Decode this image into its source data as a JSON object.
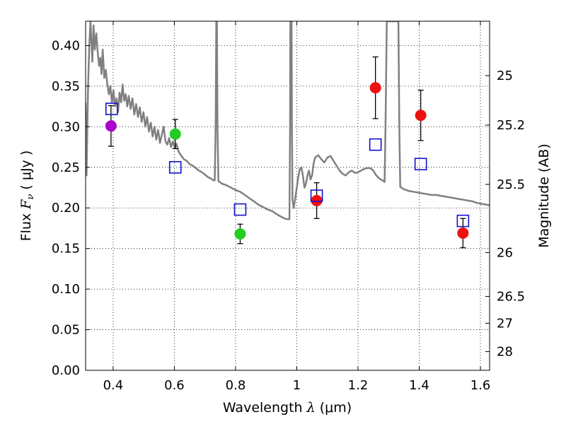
{
  "chart_data": {
    "type": "scatter",
    "xlabel_prefix": "Wavelength  ",
    "xlabel_symbol": "λ",
    "xlabel_suffix": " (μm)",
    "ylabel_prefix": "Flux  ",
    "ylabel_symbol": "F",
    "ylabel_subscript": "ν",
    "ylabel_suffix": "  ( μJy )",
    "y2label": "Magnitude (AB)",
    "xlim": [
      0.31,
      1.63
    ],
    "ylim": [
      0.0,
      0.43
    ],
    "grid": true,
    "x_ticks": [
      0.4,
      0.6,
      0.8,
      1.0,
      1.2,
      1.4,
      1.6
    ],
    "x_tick_labels": [
      "0.4",
      "0.6",
      "0.8",
      "1",
      "1.2",
      "1.4",
      "1.6"
    ],
    "y_ticks": [
      0.0,
      0.05,
      0.1,
      0.15,
      0.2,
      0.25,
      0.3,
      0.35,
      0.4
    ],
    "y_tick_labels": [
      "0.00",
      "0.05",
      "0.10",
      "0.15",
      "0.20",
      "0.25",
      "0.30",
      "0.35",
      "0.40"
    ],
    "y2_ticks": [
      {
        "label": "25",
        "flux": 0.363
      },
      {
        "label": "25.2",
        "flux": 0.302
      },
      {
        "label": "25.5",
        "flux": 0.229
      },
      {
        "label": "26",
        "flux": 0.145
      },
      {
        "label": "26.5",
        "flux": 0.091
      },
      {
        "label": "27",
        "flux": 0.058
      },
      {
        "label": "28",
        "flux": 0.023
      }
    ],
    "observed_points": [
      {
        "x": 0.393,
        "y": 0.301,
        "err": 0.025,
        "color": "#aa00cc"
      },
      {
        "x": 0.603,
        "y": 0.291,
        "err": 0.018,
        "color": "#22cc22"
      },
      {
        "x": 0.815,
        "y": 0.168,
        "err": 0.012,
        "color": "#22cc22"
      },
      {
        "x": 1.065,
        "y": 0.209,
        "err": 0.022,
        "color": "#ee1111"
      },
      {
        "x": 1.257,
        "y": 0.348,
        "err": 0.038,
        "color": "#ee1111"
      },
      {
        "x": 1.405,
        "y": 0.314,
        "err": 0.031,
        "color": "#ee1111"
      },
      {
        "x": 1.543,
        "y": 0.169,
        "err": 0.018,
        "color": "#ee1111"
      }
    ],
    "model_points": [
      {
        "x": 0.395,
        "y": 0.322
      },
      {
        "x": 0.603,
        "y": 0.25
      },
      {
        "x": 0.815,
        "y": 0.198
      },
      {
        "x": 1.065,
        "y": 0.215
      },
      {
        "x": 1.257,
        "y": 0.278
      },
      {
        "x": 1.405,
        "y": 0.254
      },
      {
        "x": 1.543,
        "y": 0.184
      }
    ],
    "model_marker_color": "#1111cc",
    "sed_color": "#808080",
    "sed_curve": [
      [
        0.31,
        0.33
      ],
      [
        0.313,
        0.24
      ],
      [
        0.318,
        0.35
      ],
      [
        0.322,
        0.4
      ],
      [
        0.326,
        0.43
      ],
      [
        0.332,
        0.38
      ],
      [
        0.336,
        0.425
      ],
      [
        0.34,
        0.395
      ],
      [
        0.345,
        0.415
      ],
      [
        0.35,
        0.39
      ],
      [
        0.354,
        0.375
      ],
      [
        0.358,
        0.385
      ],
      [
        0.362,
        0.365
      ],
      [
        0.366,
        0.395
      ],
      [
        0.371,
        0.36
      ],
      [
        0.376,
        0.37
      ],
      [
        0.381,
        0.352
      ],
      [
        0.386,
        0.34
      ],
      [
        0.391,
        0.35
      ],
      [
        0.396,
        0.33
      ],
      [
        0.401,
        0.345
      ],
      [
        0.406,
        0.325
      ],
      [
        0.411,
        0.335
      ],
      [
        0.416,
        0.318
      ],
      [
        0.421,
        0.342
      ],
      [
        0.426,
        0.33
      ],
      [
        0.431,
        0.352
      ],
      [
        0.436,
        0.332
      ],
      [
        0.441,
        0.34
      ],
      [
        0.446,
        0.325
      ],
      [
        0.451,
        0.338
      ],
      [
        0.457,
        0.322
      ],
      [
        0.463,
        0.335
      ],
      [
        0.469,
        0.315
      ],
      [
        0.475,
        0.328
      ],
      [
        0.481,
        0.312
      ],
      [
        0.487,
        0.324
      ],
      [
        0.493,
        0.306
      ],
      [
        0.499,
        0.318
      ],
      [
        0.505,
        0.3
      ],
      [
        0.511,
        0.312
      ],
      [
        0.517,
        0.294
      ],
      [
        0.523,
        0.305
      ],
      [
        0.529,
        0.288
      ],
      [
        0.535,
        0.3
      ],
      [
        0.541,
        0.284
      ],
      [
        0.547,
        0.296
      ],
      [
        0.553,
        0.28
      ],
      [
        0.559,
        0.29
      ],
      [
        0.565,
        0.3
      ],
      [
        0.571,
        0.282
      ],
      [
        0.577,
        0.278
      ],
      [
        0.583,
        0.286
      ],
      [
        0.589,
        0.275
      ],
      [
        0.595,
        0.282
      ],
      [
        0.601,
        0.274
      ],
      [
        0.607,
        0.279
      ],
      [
        0.613,
        0.27
      ],
      [
        0.619,
        0.266
      ],
      [
        0.625,
        0.263
      ],
      [
        0.631,
        0.26
      ],
      [
        0.64,
        0.258
      ],
      [
        0.65,
        0.254
      ],
      [
        0.66,
        0.252
      ],
      [
        0.67,
        0.249
      ],
      [
        0.68,
        0.246
      ],
      [
        0.69,
        0.244
      ],
      [
        0.7,
        0.241
      ],
      [
        0.71,
        0.238
      ],
      [
        0.72,
        0.236
      ],
      [
        0.728,
        0.234
      ],
      [
        0.732,
        0.234
      ],
      [
        0.735,
        0.3
      ],
      [
        0.737,
        0.43
      ],
      [
        0.739,
        0.43
      ],
      [
        0.741,
        0.3
      ],
      [
        0.744,
        0.233
      ],
      [
        0.755,
        0.23
      ],
      [
        0.77,
        0.228
      ],
      [
        0.785,
        0.225
      ],
      [
        0.8,
        0.222
      ],
      [
        0.815,
        0.22
      ],
      [
        0.83,
        0.216
      ],
      [
        0.845,
        0.212
      ],
      [
        0.86,
        0.208
      ],
      [
        0.875,
        0.204
      ],
      [
        0.89,
        0.201
      ],
      [
        0.905,
        0.198
      ],
      [
        0.92,
        0.196
      ],
      [
        0.935,
        0.192
      ],
      [
        0.95,
        0.189
      ],
      [
        0.96,
        0.187
      ],
      [
        0.97,
        0.186
      ],
      [
        0.976,
        0.186
      ],
      [
        0.978,
        0.3
      ],
      [
        0.979,
        0.43
      ],
      [
        0.983,
        0.43
      ],
      [
        0.984,
        0.3
      ],
      [
        0.986,
        0.21
      ],
      [
        0.99,
        0.2
      ],
      [
        0.995,
        0.212
      ],
      [
        1.0,
        0.225
      ],
      [
        1.005,
        0.238
      ],
      [
        1.01,
        0.248
      ],
      [
        1.015,
        0.25
      ],
      [
        1.02,
        0.24
      ],
      [
        1.025,
        0.225
      ],
      [
        1.03,
        0.23
      ],
      [
        1.035,
        0.24
      ],
      [
        1.04,
        0.246
      ],
      [
        1.045,
        0.235
      ],
      [
        1.05,
        0.24
      ],
      [
        1.055,
        0.255
      ],
      [
        1.06,
        0.262
      ],
      [
        1.07,
        0.265
      ],
      [
        1.08,
        0.26
      ],
      [
        1.09,
        0.256
      ],
      [
        1.1,
        0.262
      ],
      [
        1.11,
        0.264
      ],
      [
        1.12,
        0.258
      ],
      [
        1.13,
        0.252
      ],
      [
        1.14,
        0.246
      ],
      [
        1.15,
        0.242
      ],
      [
        1.16,
        0.24
      ],
      [
        1.17,
        0.244
      ],
      [
        1.18,
        0.246
      ],
      [
        1.19,
        0.243
      ],
      [
        1.2,
        0.244
      ],
      [
        1.21,
        0.246
      ],
      [
        1.22,
        0.248
      ],
      [
        1.23,
        0.249
      ],
      [
        1.24,
        0.249
      ],
      [
        1.25,
        0.246
      ],
      [
        1.26,
        0.24
      ],
      [
        1.27,
        0.236
      ],
      [
        1.28,
        0.234
      ],
      [
        1.287,
        0.232
      ],
      [
        1.29,
        0.3
      ],
      [
        1.294,
        0.43
      ],
      [
        1.332,
        0.43
      ],
      [
        1.335,
        0.3
      ],
      [
        1.338,
        0.226
      ],
      [
        1.35,
        0.223
      ],
      [
        1.365,
        0.221
      ],
      [
        1.38,
        0.22
      ],
      [
        1.395,
        0.219
      ],
      [
        1.41,
        0.218
      ],
      [
        1.425,
        0.217
      ],
      [
        1.44,
        0.216
      ],
      [
        1.455,
        0.216
      ],
      [
        1.47,
        0.215
      ],
      [
        1.485,
        0.214
      ],
      [
        1.5,
        0.213
      ],
      [
        1.515,
        0.212
      ],
      [
        1.53,
        0.211
      ],
      [
        1.545,
        0.21
      ],
      [
        1.56,
        0.209
      ],
      [
        1.575,
        0.208
      ],
      [
        1.59,
        0.206
      ],
      [
        1.605,
        0.205
      ],
      [
        1.62,
        0.204
      ],
      [
        1.63,
        0.203
      ]
    ]
  }
}
